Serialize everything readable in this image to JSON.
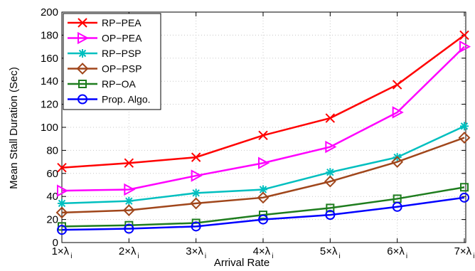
{
  "chart_data": {
    "type": "line",
    "xlabel": "Arrival Rate",
    "ylabel": "Mean Stall Duration (Sec)",
    "ylim": [
      0,
      200
    ],
    "y_ticks": [
      0,
      20,
      40,
      60,
      80,
      100,
      120,
      140,
      160,
      180,
      200
    ],
    "grid": true,
    "legend_position": "top-left",
    "categories": [
      "1×λ",
      "2×λ",
      "3×λ",
      "4×λ",
      "5×λ",
      "6×λ",
      "7×λ"
    ],
    "category_subscript": "i",
    "series": [
      {
        "name": "RP−PEA",
        "color": "#ff0000",
        "marker": "x-cross",
        "values": [
          65,
          69,
          74,
          93,
          108,
          137,
          180
        ]
      },
      {
        "name": "OP−PEA",
        "color": "#ff00ff",
        "marker": "triangle-right",
        "values": [
          45,
          46,
          58,
          69,
          83,
          113,
          170
        ]
      },
      {
        "name": "RP−PSP",
        "color": "#00bfbf",
        "marker": "asterisk",
        "values": [
          34,
          36,
          43,
          46,
          61,
          74,
          101
        ]
      },
      {
        "name": "OP−PSP",
        "color": "#a0461b",
        "marker": "diamond",
        "values": [
          26,
          28,
          34,
          39,
          53,
          70,
          91
        ]
      },
      {
        "name": "RP−OA",
        "color": "#1e7d1e",
        "marker": "square",
        "values": [
          14,
          15,
          17,
          24,
          30,
          38,
          48
        ]
      },
      {
        "name": "Prop. Algo.",
        "color": "#0000ff",
        "marker": "circle",
        "values": [
          11,
          12,
          14,
          20,
          24,
          31,
          39
        ]
      }
    ]
  }
}
